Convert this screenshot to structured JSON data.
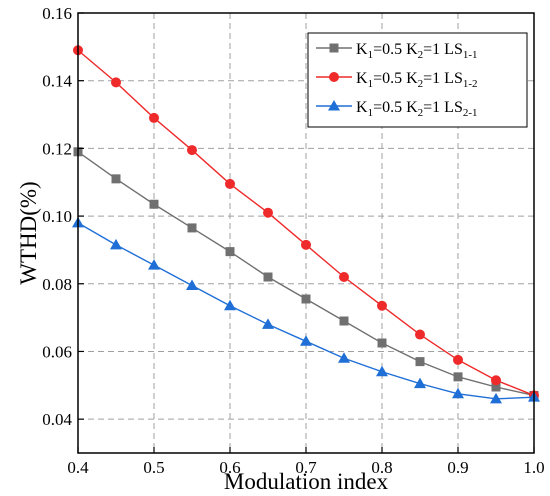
{
  "chart_data": {
    "type": "line",
    "xlabel": "Modulation index",
    "ylabel": "WTHD(%)",
    "xlim": [
      0.4,
      1.0
    ],
    "ylim": [
      0.03,
      0.16
    ],
    "x_ticks": [
      "0.4",
      "0.5",
      "0.6",
      "0.7",
      "0.8",
      "0.9",
      "1.0"
    ],
    "y_ticks": [
      "0.04",
      "0.06",
      "0.08",
      "0.10",
      "0.12",
      "0.14",
      "0.16"
    ],
    "grid": true,
    "legend_position": "top-right",
    "x": [
      0.4,
      0.45,
      0.5,
      0.55,
      0.6,
      0.65,
      0.7,
      0.75,
      0.8,
      0.85,
      0.9,
      0.95,
      1.0
    ],
    "series": [
      {
        "name_main": "K",
        "name_parts": [
          "1",
          "=0.5 K",
          "2",
          "=1 LS",
          "1-1"
        ],
        "color": "#707070",
        "marker": "square",
        "values": [
          0.119,
          0.111,
          0.1035,
          0.0965,
          0.0895,
          0.082,
          0.0755,
          0.069,
          0.0625,
          0.057,
          0.0525,
          0.0495,
          0.047
        ]
      },
      {
        "name_main": "K",
        "name_parts": [
          "1",
          "=0.5 K",
          "2",
          "=1 LS",
          "1-2"
        ],
        "color": "#ee2a2a",
        "marker": "circle",
        "values": [
          0.149,
          0.1395,
          0.129,
          0.1195,
          0.1095,
          0.101,
          0.0915,
          0.082,
          0.0735,
          0.065,
          0.0575,
          0.0515,
          0.047
        ]
      },
      {
        "name_main": "K",
        "name_parts": [
          "1",
          "=0.5 K",
          "2",
          "=1 LS",
          "2-1"
        ],
        "color": "#1f6fd6",
        "marker": "triangle",
        "values": [
          0.098,
          0.0915,
          0.0855,
          0.0795,
          0.0735,
          0.068,
          0.063,
          0.058,
          0.054,
          0.0505,
          0.0475,
          0.046,
          0.0465
        ]
      }
    ]
  }
}
